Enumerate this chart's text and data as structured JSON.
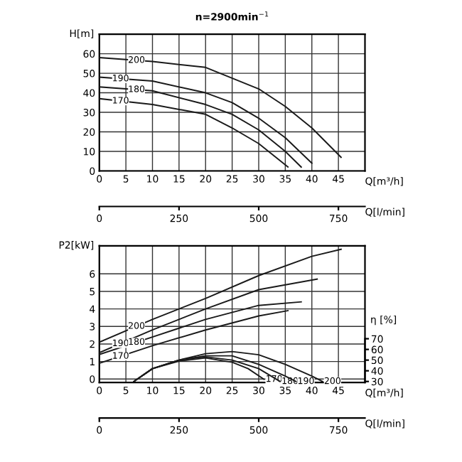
{
  "chart_data": [
    {
      "type": "line",
      "title": "n=2900min$^{−1}$",
      "xlabel": "Q[m³/h]",
      "ylabel": "H[m]",
      "x2label": "Q[l/min]",
      "xlim": [
        0,
        50
      ],
      "xticks": [
        0,
        5,
        10,
        15,
        20,
        25,
        30,
        35,
        40,
        45
      ],
      "ylim": [
        0,
        70
      ],
      "yticks": [
        0,
        10,
        20,
        30,
        40,
        50,
        60
      ],
      "x2lim": [
        0,
        833.3
      ],
      "x2ticks": [
        0,
        250,
        500,
        750
      ],
      "grid": true,
      "marker": "none",
      "line_style": "solid",
      "series": [
        {
          "name": "200",
          "color": "#1a1a1a",
          "x": [
            0,
            10,
            20,
            30,
            35,
            40,
            45.5
          ],
          "values": [
            58,
            56,
            53,
            42,
            33,
            22,
            7
          ]
        },
        {
          "name": "190",
          "color": "#1a1a1a",
          "x": [
            0,
            10,
            20,
            25,
            30,
            35,
            40
          ],
          "values": [
            48,
            46,
            40,
            35,
            27,
            17,
            4
          ]
        },
        {
          "name": "180",
          "color": "#1a1a1a",
          "x": [
            0,
            10,
            20,
            25,
            30,
            35,
            38
          ],
          "values": [
            43,
            41,
            34,
            29,
            21,
            10,
            2
          ]
        },
        {
          "name": "170",
          "color": "#1a1a1a",
          "x": [
            0,
            10,
            20,
            25,
            30,
            35.5
          ],
          "values": [
            37,
            34,
            29,
            22,
            14,
            2
          ]
        }
      ]
    },
    {
      "type": "line",
      "xlabel": "Q[m³/h]",
      "ylabel": "P2[kW]",
      "y2label": "η [%]",
      "x2label": "Q[l/min]",
      "xlim": [
        0,
        50
      ],
      "xticks": [
        0,
        5,
        10,
        15,
        20,
        25,
        30,
        35,
        40,
        45
      ],
      "ylim": [
        -0.2,
        7.6
      ],
      "yticks": [
        0,
        1,
        2,
        3,
        4,
        5,
        6
      ],
      "y2lim": [
        29,
        157
      ],
      "y2ticks": [
        30,
        40,
        50,
        60,
        70
      ],
      "x2lim": [
        0,
        833.3
      ],
      "x2ticks": [
        0,
        250,
        500,
        750
      ],
      "grid": true,
      "marker": "none",
      "line_style": "solid",
      "series": [
        {
          "name": "200",
          "color": "#1a1a1a",
          "x": [
            0,
            10,
            20,
            30,
            40,
            45.5
          ],
          "values": [
            2.1,
            3.4,
            4.6,
            5.9,
            7.0,
            7.4
          ]
        },
        {
          "name": "190",
          "color": "#1a1a1a",
          "x": [
            0,
            10,
            20,
            30,
            41
          ],
          "values": [
            1.5,
            2.8,
            4.0,
            5.1,
            5.7
          ]
        },
        {
          "name": "180",
          "color": "#1a1a1a",
          "x": [
            0,
            10,
            20,
            30,
            38
          ],
          "values": [
            1.4,
            2.4,
            3.4,
            4.2,
            4.4
          ]
        },
        {
          "name": "170",
          "color": "#1a1a1a",
          "x": [
            0,
            10,
            20,
            30,
            35.5
          ],
          "values": [
            0.9,
            1.9,
            2.8,
            3.6,
            3.9
          ]
        },
        {
          "name": "170",
          "color": "#1a1a1a",
          "axis": "y2",
          "x": [
            6.5,
            10,
            15,
            20,
            25,
            28,
            31
          ],
          "values": [
            30,
            42,
            49,
            52,
            48,
            42,
            32
          ]
        },
        {
          "name": "180",
          "color": "#1a1a1a",
          "axis": "y2",
          "x": [
            6.5,
            10,
            15,
            20,
            25,
            30,
            34
          ],
          "values": [
            30,
            42,
            50,
            53,
            50,
            42,
            30
          ]
        },
        {
          "name": "190",
          "color": "#1a1a1a",
          "axis": "y2",
          "x": [
            6.5,
            10,
            15,
            20,
            25,
            30,
            35,
            37
          ],
          "values": [
            30,
            42,
            50,
            54,
            54,
            46,
            35,
            30
          ]
        },
        {
          "name": "200",
          "color": "#1a1a1a",
          "axis": "y2",
          "x": [
            6.5,
            10,
            15,
            20,
            25,
            30,
            35,
            40,
            42
          ],
          "values": [
            30,
            42,
            50,
            56,
            58,
            55,
            46,
            35,
            30
          ]
        }
      ]
    }
  ]
}
